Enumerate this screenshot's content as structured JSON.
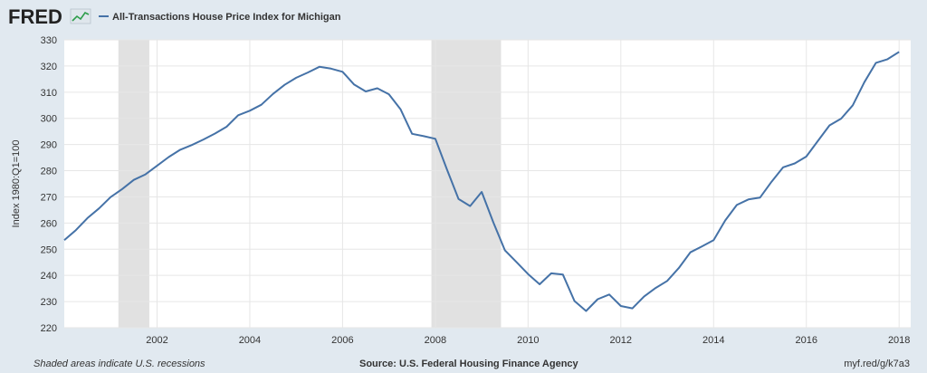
{
  "header": {
    "logo_text": "FRED",
    "logo_icon": "chart-trend-icon",
    "legend_label": "All-Transactions House Price Index for Michigan",
    "series_color": "#4572a7"
  },
  "footer": {
    "recession_note": "Shaded areas indicate U.S. recessions",
    "source": "Source: U.S. Federal Housing Finance Agency",
    "short_url": "myf.red/g/k7a3"
  },
  "chart_data": {
    "type": "line",
    "title": "All-Transactions House Price Index for Michigan",
    "ylabel": "Index 1980:Q1=100",
    "xlabel": "",
    "ylim": [
      220,
      330
    ],
    "xlim": [
      "2000-01-01",
      "2018-04-01"
    ],
    "yticks": [
      220,
      230,
      240,
      250,
      260,
      270,
      280,
      290,
      300,
      310,
      320,
      330
    ],
    "xticks": [
      "2002",
      "2004",
      "2006",
      "2008",
      "2010",
      "2012",
      "2014",
      "2016",
      "2018"
    ],
    "grid": true,
    "recessions": [
      {
        "start": "2001-03-01",
        "end": "2001-11-01"
      },
      {
        "start": "2007-12-01",
        "end": "2009-06-01"
      }
    ],
    "series": [
      {
        "name": "All-Transactions House Price Index for Michigan",
        "color": "#4572a7",
        "x": [
          "2000-01-01",
          "2000-04-01",
          "2000-07-01",
          "2000-10-01",
          "2001-01-01",
          "2001-04-01",
          "2001-07-01",
          "2001-10-01",
          "2002-01-01",
          "2002-04-01",
          "2002-07-01",
          "2002-10-01",
          "2003-01-01",
          "2003-04-01",
          "2003-07-01",
          "2003-10-01",
          "2004-01-01",
          "2004-04-01",
          "2004-07-01",
          "2004-10-01",
          "2005-01-01",
          "2005-04-01",
          "2005-07-01",
          "2005-10-01",
          "2006-01-01",
          "2006-04-01",
          "2006-07-01",
          "2006-10-01",
          "2007-01-01",
          "2007-04-01",
          "2007-07-01",
          "2007-10-01",
          "2008-01-01",
          "2008-04-01",
          "2008-07-01",
          "2008-10-01",
          "2009-01-01",
          "2009-04-01",
          "2009-07-01",
          "2009-10-01",
          "2010-01-01",
          "2010-04-01",
          "2010-07-01",
          "2010-10-01",
          "2011-01-01",
          "2011-04-01",
          "2011-07-01",
          "2011-10-01",
          "2012-01-01",
          "2012-04-01",
          "2012-07-01",
          "2012-10-01",
          "2013-01-01",
          "2013-04-01",
          "2013-07-01",
          "2013-10-01",
          "2014-01-01",
          "2014-04-01",
          "2014-07-01",
          "2014-10-01",
          "2015-01-01",
          "2015-04-01",
          "2015-07-01",
          "2015-10-01",
          "2016-01-01",
          "2016-04-01",
          "2016-07-01",
          "2016-10-01",
          "2017-01-01",
          "2017-04-01",
          "2017-07-01",
          "2017-10-01",
          "2018-01-01"
        ],
        "values": [
          253.5,
          257.3,
          261.9,
          265.6,
          269.9,
          273.0,
          276.5,
          278.6,
          281.9,
          285.2,
          288.0,
          289.8,
          291.9,
          294.2,
          296.8,
          301.2,
          302.9,
          305.2,
          309.3,
          312.8,
          315.5,
          317.5,
          319.7,
          319.0,
          317.8,
          312.9,
          310.3,
          311.5,
          309.2,
          303.5,
          294.1,
          293.2,
          292.2,
          280.5,
          269.2,
          266.5,
          271.9,
          260.3,
          249.6,
          245.1,
          240.5,
          236.6,
          240.8,
          240.3,
          230.2,
          226.4,
          230.9,
          232.7,
          228.3,
          227.4,
          231.9,
          235.2,
          237.9,
          242.8,
          248.8,
          251.1,
          253.5,
          261.0,
          266.9,
          269.0,
          269.7,
          275.8,
          281.3,
          282.8,
          285.4,
          291.4,
          297.3,
          299.9,
          305.0,
          313.8,
          321.2,
          322.6,
          325.4
        ]
      }
    ]
  }
}
